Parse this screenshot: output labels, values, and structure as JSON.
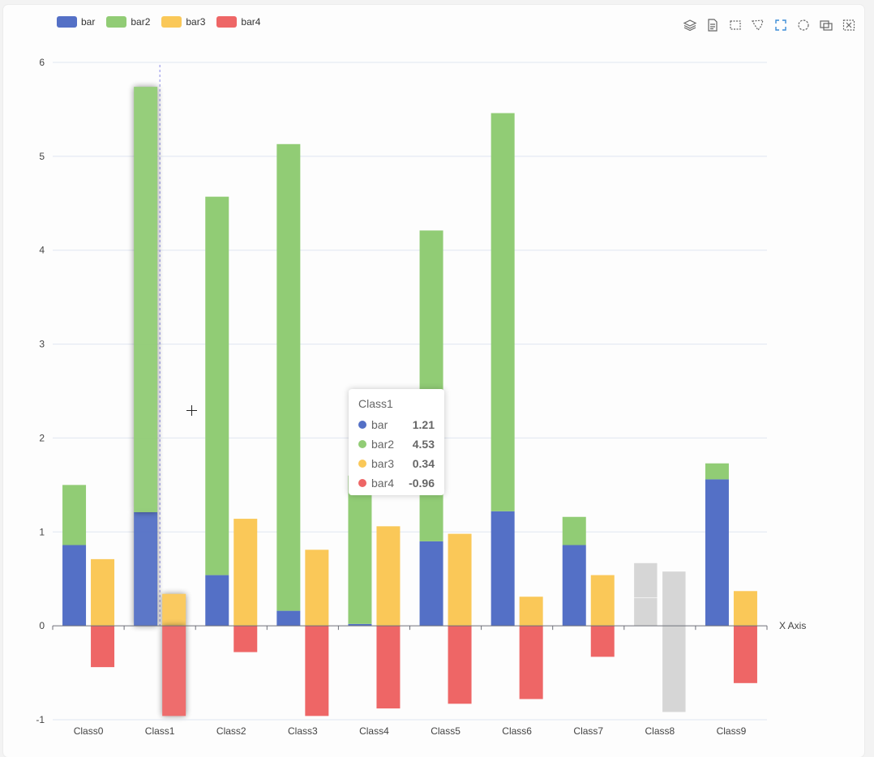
{
  "legend": [
    {
      "name": "bar",
      "color": "#5470c6"
    },
    {
      "name": "bar2",
      "color": "#91cc75"
    },
    {
      "name": "bar3",
      "color": "#fac858"
    },
    {
      "name": "bar4",
      "color": "#ee6666"
    }
  ],
  "toolbox": [
    "stack-icon",
    "data-view-icon",
    "rect-select-icon",
    "polygon-select-icon",
    "keep-select-icon",
    "clear-select-icon",
    "magic-type-icon",
    "reset-icon"
  ],
  "chart_data": {
    "type": "bar",
    "categories": [
      "Class0",
      "Class1",
      "Class2",
      "Class3",
      "Class4",
      "Class5",
      "Class6",
      "Class7",
      "Class8",
      "Class9"
    ],
    "series": [
      {
        "name": "bar",
        "stack": "one",
        "values": [
          0.86,
          1.21,
          0.54,
          0.16,
          0.02,
          0.9,
          1.22,
          0.86,
          0.3,
          1.56
        ]
      },
      {
        "name": "bar2",
        "stack": "one",
        "values": [
          0.64,
          4.53,
          4.03,
          4.97,
          1.58,
          3.31,
          4.24,
          0.3,
          0.37,
          0.17
        ]
      },
      {
        "name": "bar3",
        "stack": "two",
        "values": [
          0.71,
          0.34,
          1.14,
          0.81,
          1.06,
          0.98,
          0.31,
          0.54,
          0.58,
          0.37
        ]
      },
      {
        "name": "bar4",
        "stack": "two",
        "values": [
          -0.44,
          -0.96,
          -0.28,
          -0.96,
          -0.88,
          -0.83,
          -0.78,
          -0.33,
          -0.92,
          -0.61
        ]
      }
    ],
    "x_axis_name": "X Axis",
    "ylim": [
      -1,
      6
    ],
    "y_ticks": [
      -1,
      0,
      1,
      2,
      3,
      4,
      5,
      6
    ],
    "highlighted_category": "Class1",
    "greyed_category": "Class8",
    "tooltip": {
      "title": "Class1",
      "rows": [
        {
          "name": "bar",
          "value": "1.21"
        },
        {
          "name": "bar2",
          "value": "4.53"
        },
        {
          "name": "bar3",
          "value": "0.34"
        },
        {
          "name": "bar4",
          "value": "-0.96"
        }
      ]
    }
  }
}
